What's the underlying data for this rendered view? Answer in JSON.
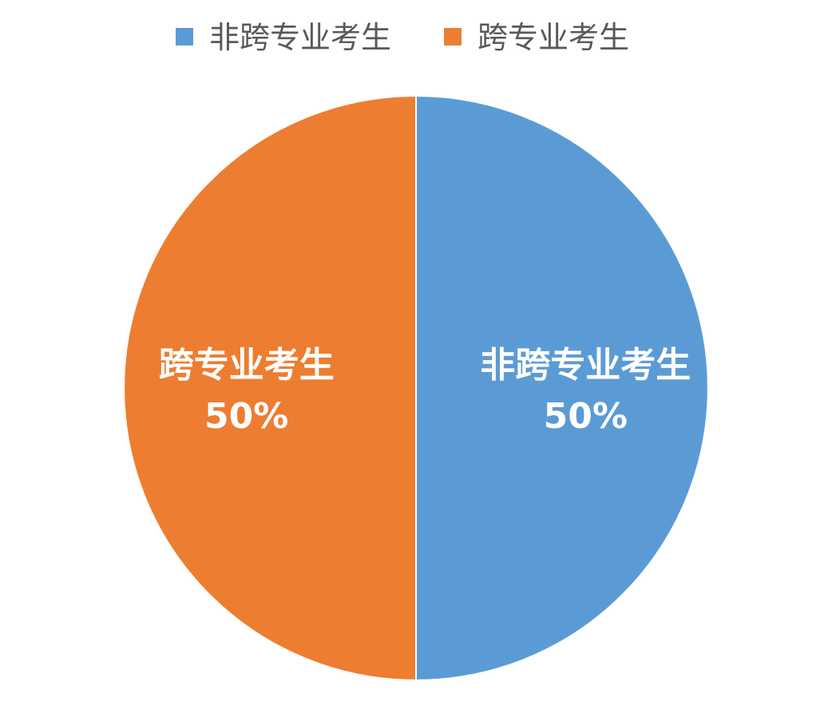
{
  "chart_data": {
    "type": "pie",
    "title": "",
    "legend_position": "top",
    "categories": [
      "非跨专业考生",
      "跨专业考生"
    ],
    "values": [
      50,
      50
    ],
    "data_labels": [
      "50%",
      "50%"
    ],
    "colors": [
      "#5B9BD5",
      "#ED7D31"
    ],
    "start_angle": "12 o'clock",
    "direction": "clockwise"
  }
}
